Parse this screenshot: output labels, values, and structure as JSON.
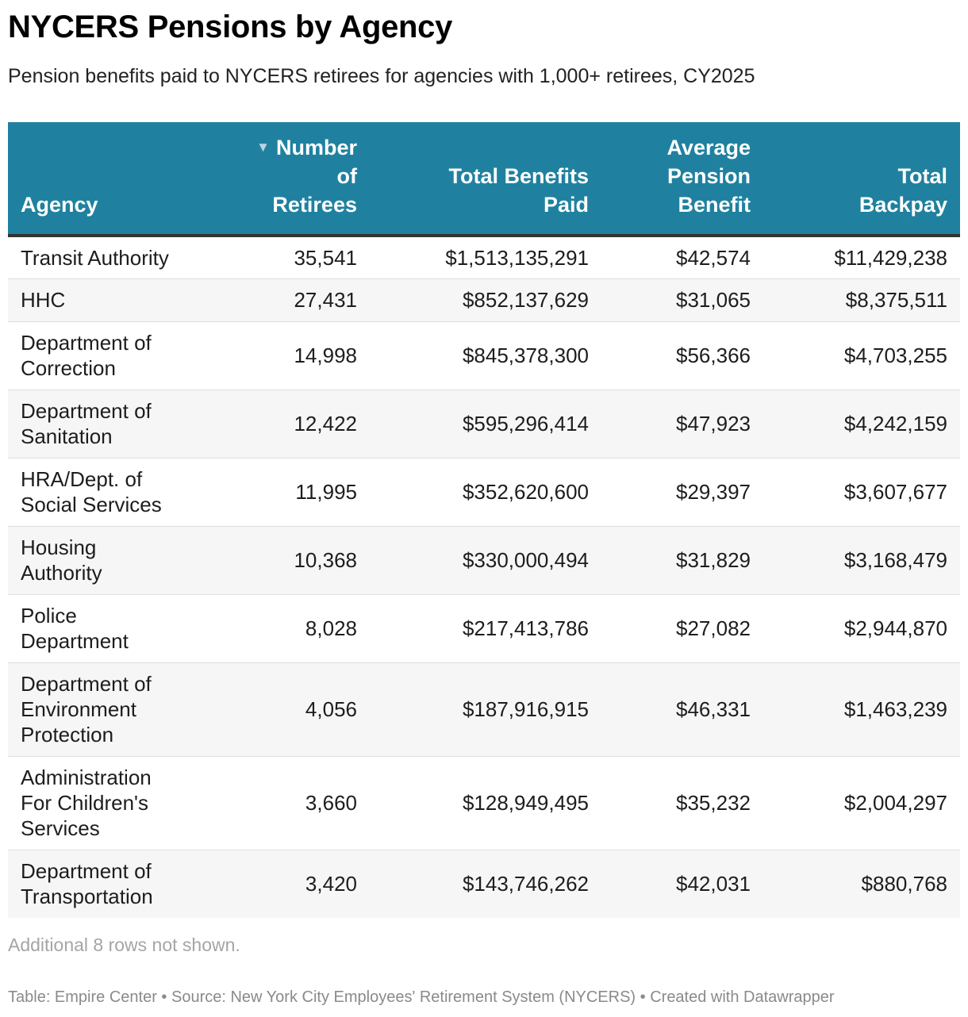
{
  "title": "NYCERS Pensions by Agency",
  "subtitle": "Pension benefits paid to NYCERS retirees for agencies with 1,000+ retirees, CY2025",
  "chart_data": {
    "type": "table",
    "sorted_by": "Number of Retirees",
    "sort_direction": "descending",
    "colors": {
      "header_bg": "#1f819f",
      "header_text": "#ffffff",
      "stripe": "#f6f6f6"
    },
    "columns": [
      {
        "key": "agency",
        "lines": [
          "Agency"
        ],
        "align": "left"
      },
      {
        "key": "retirees",
        "lines": [
          "Number",
          "of",
          "Retirees"
        ],
        "align": "right",
        "sorted": true
      },
      {
        "key": "total",
        "lines": [
          "Total Benefits",
          "Paid"
        ],
        "align": "right"
      },
      {
        "key": "average",
        "lines": [
          "Average",
          "Pension",
          "Benefit"
        ],
        "align": "right"
      },
      {
        "key": "backpay",
        "lines": [
          "Total",
          "Backpay"
        ],
        "align": "right"
      }
    ],
    "rows": [
      {
        "agency": [
          "Transit Authority"
        ],
        "retirees": "35,541",
        "total": "$1,513,135,291",
        "average": "$42,574",
        "backpay": "$11,429,238"
      },
      {
        "agency": [
          "HHC"
        ],
        "retirees": "27,431",
        "total": "$852,137,629",
        "average": "$31,065",
        "backpay": "$8,375,511"
      },
      {
        "agency": [
          "Department of",
          "Correction"
        ],
        "retirees": "14,998",
        "total": "$845,378,300",
        "average": "$56,366",
        "backpay": "$4,703,255"
      },
      {
        "agency": [
          "Department of",
          "Sanitation"
        ],
        "retirees": "12,422",
        "total": "$595,296,414",
        "average": "$47,923",
        "backpay": "$4,242,159"
      },
      {
        "agency": [
          "HRA/Dept. of",
          "Social Services"
        ],
        "retirees": "11,995",
        "total": "$352,620,600",
        "average": "$29,397",
        "backpay": "$3,607,677"
      },
      {
        "agency": [
          "Housing",
          "Authority"
        ],
        "retirees": "10,368",
        "total": "$330,000,494",
        "average": "$31,829",
        "backpay": "$3,168,479"
      },
      {
        "agency": [
          "Police",
          "Department"
        ],
        "retirees": "8,028",
        "total": "$217,413,786",
        "average": "$27,082",
        "backpay": "$2,944,870"
      },
      {
        "agency": [
          "Department of",
          "Environment",
          "Protection"
        ],
        "retirees": "4,056",
        "total": "$187,916,915",
        "average": "$46,331",
        "backpay": "$1,463,239"
      },
      {
        "agency": [
          "Administration",
          "For Children's",
          "Services"
        ],
        "retirees": "3,660",
        "total": "$128,949,495",
        "average": "$35,232",
        "backpay": "$2,004,297"
      },
      {
        "agency": [
          "Department of",
          "Transportation"
        ],
        "retirees": "3,420",
        "total": "$143,746,262",
        "average": "$42,031",
        "backpay": "$880,768"
      }
    ]
  },
  "footer_note": "Additional 8 rows not shown.",
  "credits": "Table: Empire Center • Source: New York City Employees' Retirement System (NYCERS) • Created with Datawrapper"
}
